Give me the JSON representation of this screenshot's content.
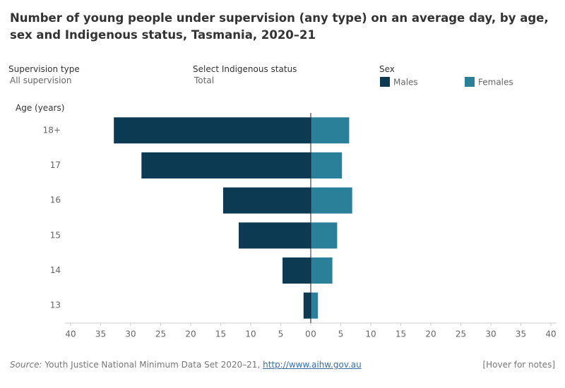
{
  "header": {
    "title": "Number of young people under supervision (any type) on an average day, by age, sex and Indigenous status, Tasmania, 2020–21"
  },
  "filters": [
    {
      "label": "Supervision type",
      "value": "All supervision"
    },
    {
      "label": "Select Indigenous status",
      "value": "Total"
    }
  ],
  "chart_data": {
    "type": "bar",
    "legend_title": "Sex",
    "y_label": "Age (years)",
    "categories": [
      "18+",
      "17",
      "16",
      "15",
      "14",
      "13"
    ],
    "series": [
      {
        "name": "Males",
        "color": "#0b3a52",
        "values": [
          32.8,
          28.2,
          14.6,
          12,
          4.7,
          1.2
        ]
      },
      {
        "name": "Females",
        "color": "#2a7f99",
        "values": [
          6.4,
          5.2,
          6.9,
          4.4,
          3.6,
          1.2
        ]
      }
    ],
    "xlim": [
      0,
      40
    ],
    "xticks": [
      0,
      5,
      10,
      15,
      20,
      25,
      30,
      35,
      40
    ]
  },
  "footer": {
    "source_label": "Source:",
    "source_text": "Youth Justice National Minimum Data Set 2020–21,",
    "link": "http://www.aihw.gov.au",
    "notes": "[Hover for notes]"
  }
}
